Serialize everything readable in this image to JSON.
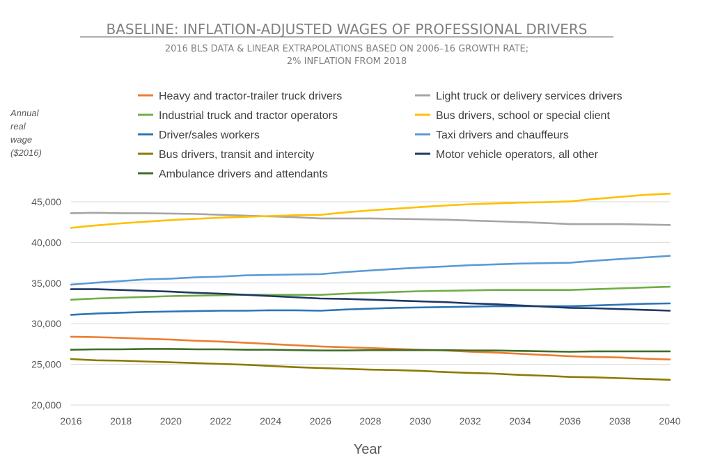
{
  "chart_data": {
    "type": "line",
    "title": "BASELINE: INFLATION-ADJUSTED WAGES OF PROFESSIONAL DRIVERS",
    "subtitle_lines": [
      "2016 BLS DATA & LINEAR EXTRAPOLATIONS BASED ON 2006–16 GROWTH RATE;",
      "2% INFLATION FROM 2018"
    ],
    "ylabel_lines": [
      "Annual",
      "real",
      "wage",
      "($2016)"
    ],
    "xlabel": "Year",
    "ylim": [
      20000,
      45000
    ],
    "xlim": [
      2016,
      2040
    ],
    "yticks": [
      20000,
      25000,
      30000,
      35000,
      40000,
      45000
    ],
    "ytick_labels": [
      "20,000",
      "25,000",
      "30,000",
      "35,000",
      "40,000",
      "45,000"
    ],
    "xticks": [
      2016,
      2018,
      2020,
      2022,
      2024,
      2026,
      2028,
      2030,
      2032,
      2034,
      2036,
      2038,
      2040
    ],
    "xtick_labels": [
      "2016",
      "2018",
      "2020",
      "2022",
      "2024",
      "2026",
      "2028",
      "2030",
      "2032",
      "2034",
      "2036",
      "2038",
      "2040"
    ],
    "grid": "horizontal",
    "legend_position": "top",
    "x": [
      2016,
      2017,
      2018,
      2019,
      2020,
      2021,
      2022,
      2023,
      2024,
      2025,
      2026,
      2027,
      2028,
      2029,
      2030,
      2031,
      2032,
      2033,
      2034,
      2035,
      2036,
      2037,
      2038,
      2039,
      2040
    ],
    "series": [
      {
        "name": "Heavy and tractor-trailer truck drivers",
        "color": "#ed7d31",
        "values": [
          28400,
          28350,
          28250,
          28150,
          28050,
          27900,
          27800,
          27650,
          27500,
          27350,
          27200,
          27100,
          27000,
          26900,
          26800,
          26700,
          26550,
          26450,
          26300,
          26150,
          26000,
          25900,
          25850,
          25700,
          25600
        ]
      },
      {
        "name": "Light truck or delivery services drivers",
        "color": "#a5a5a5",
        "values": [
          43600,
          43650,
          43600,
          43600,
          43550,
          43500,
          43400,
          43300,
          43200,
          43100,
          42950,
          42950,
          42950,
          42900,
          42850,
          42800,
          42700,
          42600,
          42500,
          42400,
          42250,
          42250,
          42250,
          42200,
          42150
        ]
      },
      {
        "name": "Industrial truck and tractor operators",
        "color": "#70ad47",
        "values": [
          32950,
          33100,
          33200,
          33300,
          33400,
          33450,
          33500,
          33550,
          33550,
          33550,
          33550,
          33700,
          33800,
          33900,
          34000,
          34050,
          34100,
          34150,
          34150,
          34150,
          34150,
          34250,
          34350,
          34450,
          34550
        ]
      },
      {
        "name": "Bus drivers, school or special client",
        "color": "#ffc000",
        "values": [
          41800,
          42100,
          42350,
          42550,
          42750,
          42900,
          43050,
          43150,
          43250,
          43350,
          43400,
          43700,
          43950,
          44150,
          44350,
          44550,
          44700,
          44800,
          44900,
          44950,
          45050,
          45350,
          45600,
          45850,
          46000
        ]
      },
      {
        "name": "Driver/sales workers",
        "color": "#2e75b6",
        "values": [
          31100,
          31250,
          31350,
          31450,
          31500,
          31550,
          31600,
          31600,
          31650,
          31650,
          31600,
          31750,
          31850,
          31950,
          32000,
          32050,
          32100,
          32150,
          32150,
          32150,
          32150,
          32250,
          32350,
          32450,
          32500
        ]
      },
      {
        "name": "Taxi drivers and chauffeurs",
        "color": "#5b9bd5",
        "values": [
          34800,
          35050,
          35250,
          35450,
          35550,
          35700,
          35800,
          35950,
          36000,
          36050,
          36100,
          36350,
          36550,
          36750,
          36900,
          37050,
          37200,
          37300,
          37400,
          37450,
          37500,
          37750,
          37950,
          38150,
          38350
        ]
      },
      {
        "name": "Bus drivers, transit and intercity",
        "color": "#8c7a00",
        "values": [
          25650,
          25500,
          25450,
          25350,
          25250,
          25150,
          25050,
          24950,
          24800,
          24650,
          24550,
          24450,
          24350,
          24300,
          24200,
          24050,
          23950,
          23850,
          23700,
          23600,
          23450,
          23400,
          23300,
          23200,
          23100
        ]
      },
      {
        "name": "Motor vehicle operators, all other",
        "color": "#203864",
        "values": [
          34250,
          34250,
          34150,
          34050,
          33950,
          33800,
          33700,
          33550,
          33400,
          33250,
          33100,
          33050,
          32950,
          32850,
          32750,
          32650,
          32500,
          32400,
          32250,
          32100,
          31950,
          31900,
          31800,
          31700,
          31600
        ]
      },
      {
        "name": "Ambulance drivers and attendants",
        "color": "#3f6e27",
        "values": [
          26800,
          26850,
          26850,
          26900,
          26900,
          26850,
          26850,
          26800,
          26800,
          26750,
          26700,
          26700,
          26750,
          26750,
          26750,
          26750,
          26700,
          26700,
          26650,
          26600,
          26550,
          26600,
          26600,
          26600,
          26600
        ]
      }
    ]
  }
}
